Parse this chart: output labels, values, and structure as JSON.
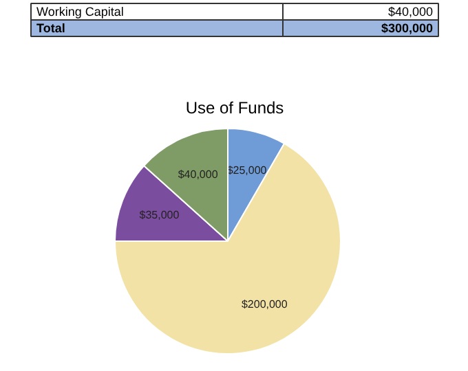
{
  "chart_data": {
    "type": "pie",
    "title": "Use of Funds",
    "categories": [
      null,
      null,
      null,
      null
    ],
    "values": [
      25000,
      200000,
      35000,
      40000
    ],
    "value_labels": [
      "$25,000",
      "$200,000",
      "$35,000",
      "$40,000"
    ],
    "colors": [
      "#6f9bd6",
      "#f3e2a6",
      "#7b4d9e",
      "#7f9c66"
    ],
    "annotations": [
      "Working Capital",
      "$40,000",
      "Total",
      "$300,000"
    ]
  }
}
